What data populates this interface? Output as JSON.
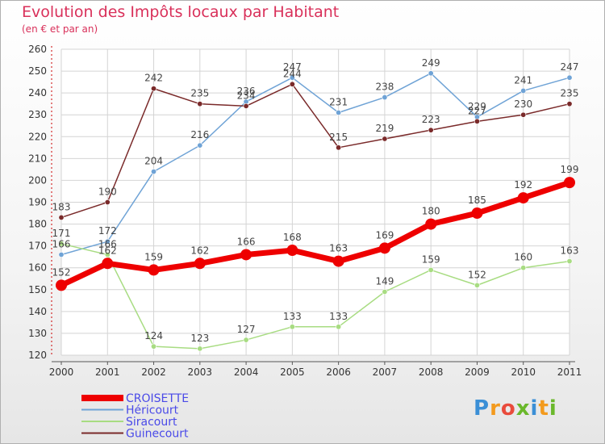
{
  "title": "Evolution des Impôts locaux par Habitant",
  "subtitle": "(en € et par an)",
  "logo": {
    "text": "Proxiti",
    "colors": [
      "#3b8fd6",
      "#f39a1d",
      "#e94b3c",
      "#6ab82b",
      "#3b8fd6",
      "#f39a1d",
      "#6ab82b"
    ]
  },
  "chart_data": {
    "type": "line",
    "categories": [
      "2000",
      "2001",
      "2002",
      "2003",
      "2004",
      "2005",
      "2006",
      "2007",
      "2008",
      "2009",
      "2010",
      "2011"
    ],
    "ylim": [
      120,
      260
    ],
    "yticks": [
      120,
      130,
      140,
      150,
      160,
      170,
      180,
      190,
      200,
      210,
      220,
      230,
      240,
      250,
      260
    ],
    "grid": true,
    "legend_position": "bottom-left",
    "series": [
      {
        "name": "CROISETTE",
        "color": "#ee0000",
        "width": 7,
        "marker": 7,
        "values": [
          152,
          162,
          159,
          162,
          166,
          168,
          163,
          169,
          180,
          185,
          192,
          199
        ]
      },
      {
        "name": "Héricourt",
        "color": "#6fa3d6",
        "width": 1.5,
        "marker": 3.2,
        "values": [
          166,
          172,
          204,
          216,
          236,
          247,
          231,
          238,
          249,
          229,
          241,
          247
        ]
      },
      {
        "name": "Siracourt",
        "color": "#a8dc82",
        "width": 1.5,
        "marker": 3.2,
        "values": [
          171,
          166,
          124,
          123,
          127,
          133,
          133,
          149,
          159,
          152,
          160,
          163
        ]
      },
      {
        "name": "Guinecourt",
        "color": "#7a2a2a",
        "width": 1.5,
        "marker": 3.2,
        "values": [
          183,
          190,
          242,
          235,
          234,
          244,
          215,
          219,
          223,
          227,
          230,
          235
        ]
      }
    ],
    "legend_text_colors": [
      "#4a4ae8",
      "#4a4ae8",
      "#4a4ae8",
      "#4a4ae8"
    ]
  }
}
